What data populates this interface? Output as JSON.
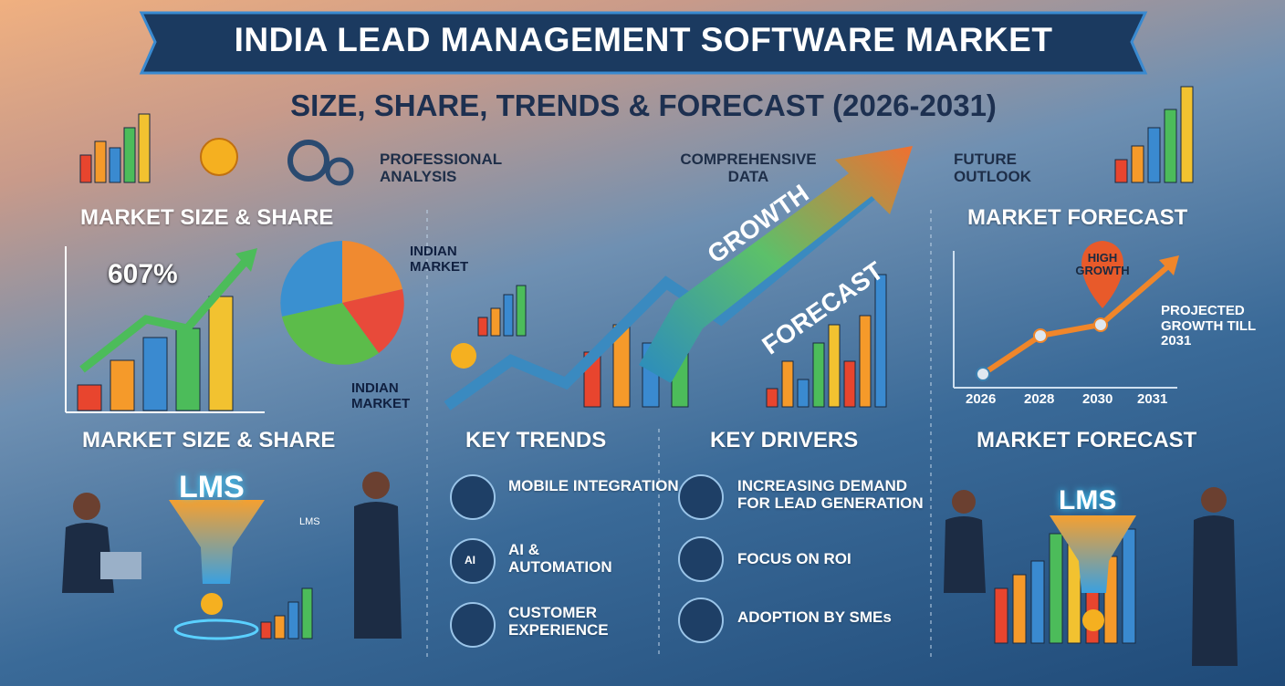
{
  "header": {
    "title": "INDIA LEAD MANAGEMENT SOFTWARE MARKET",
    "subtitle": "SIZE, SHARE, TRENDS & FORECAST (2026-2031)"
  },
  "top_labels": {
    "analysis": "PROFESSIONAL ANALYSIS",
    "data": "COMPREHENSIVE DATA",
    "outlook": "FUTURE OUTLOOK"
  },
  "left_panel": {
    "title": "MARKET SIZE & SHARE",
    "stat": "607%",
    "pie_label_top": "INDIAN MARKET",
    "pie_label_bottom": "INDIAN MARKET"
  },
  "center_panel": {
    "arrow_label_1": "GROWTH",
    "arrow_label_2": "FORECAST"
  },
  "right_panel": {
    "title": "MARKET FORECAST",
    "marker": "HIGH GROWTH",
    "note": "PROJECTED GROWTH TILL 2031",
    "years": [
      "2026",
      "2028",
      "2030",
      "2031"
    ]
  },
  "bottom": {
    "left": {
      "title": "MARKET SIZE & SHARE",
      "funnel": "LMS",
      "tag": "LMS"
    },
    "trends": {
      "title": "KEY TRENDS",
      "items": [
        "MOBILE INTEGRATION",
        "AI & AUTOMATION",
        "CUSTOMER EXPERIENCE"
      ],
      "icon_text": "AI"
    },
    "drivers": {
      "title": "KEY DRIVERS",
      "items": [
        "INCREASING DEMAND FOR LEAD GENERATION",
        "FOCUS ON ROI",
        "ADOPTION BY SMEs"
      ]
    },
    "right": {
      "title": "MARKET FORECAST",
      "funnel": "LMS"
    }
  }
}
